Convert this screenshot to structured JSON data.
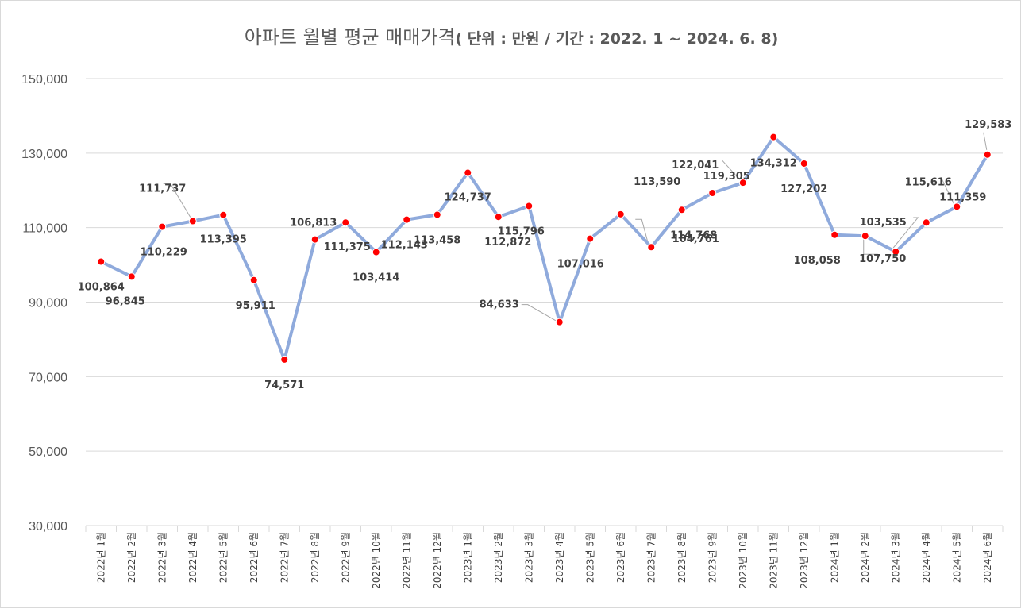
{
  "chart_data": {
    "type": "line",
    "title_main": "아파트 월별 평균 매매가격",
    "title_sub": "( 단위 : 만원 / 기간 : 2022. 1 ~ 2024. 6. 8)",
    "xlabel": "",
    "ylabel": "",
    "ylim": [
      30000,
      150000
    ],
    "y_ticks": [
      150000,
      130000,
      110000,
      90000,
      70000,
      50000,
      30000
    ],
    "y_tick_labels": [
      "150,000",
      "130,000",
      "110,000",
      "90,000",
      "70,000",
      "50,000",
      "30,000"
    ],
    "grid": true,
    "legend": "none",
    "categories": [
      "2022년 1월",
      "2022년 2월",
      "2022년 3월",
      "2022년 4월",
      "2022년 5월",
      "2022년 6월",
      "2022년 7월",
      "2022년 8월",
      "2022년 9월",
      "2022년 10월",
      "2022년 11월",
      "2022년 12월",
      "2023년 1월",
      "2023년 2월",
      "2023년 3월",
      "2023년 4월",
      "2023년 5월",
      "2023년 6월",
      "2023년 7월",
      "2023년 8월",
      "2023년 9월",
      "2023년 10월",
      "2023년 11월",
      "2023년 12월",
      "2024년 1월",
      "2024년 2월",
      "2024년 3월",
      "2024년 4월",
      "2024년 5월",
      "2024년 6월"
    ],
    "series": [
      {
        "name": "아파트 월별 평균 매매가격",
        "line_color": "#8faadc",
        "marker_color": "#ff0000",
        "values": [
          100864,
          96845,
          110229,
          111737,
          113395,
          95911,
          74571,
          106813,
          111375,
          103414,
          112143,
          113458,
          124737,
          112872,
          115796,
          84633,
          107016,
          113590,
          104761,
          114768,
          119305,
          122041,
          134312,
          127202,
          108058,
          107750,
          103535,
          111359,
          115616,
          129583
        ],
        "labels": [
          "100,864",
          "96,845",
          "110,229",
          "111,737",
          "113,395",
          "95,911",
          "74,571",
          "106,813",
          "111,375",
          "103,414",
          "112,143",
          "113,458",
          "124,737",
          "112,872",
          "115,796",
          "84,633",
          "107,016",
          "113,590",
          "104,761",
          "114,768",
          "119,305",
          "122,041",
          "134,312",
          "127,202",
          "108,058",
          "107,750",
          "103,535",
          "111,359",
          "115,616",
          "129,583"
        ]
      }
    ]
  }
}
